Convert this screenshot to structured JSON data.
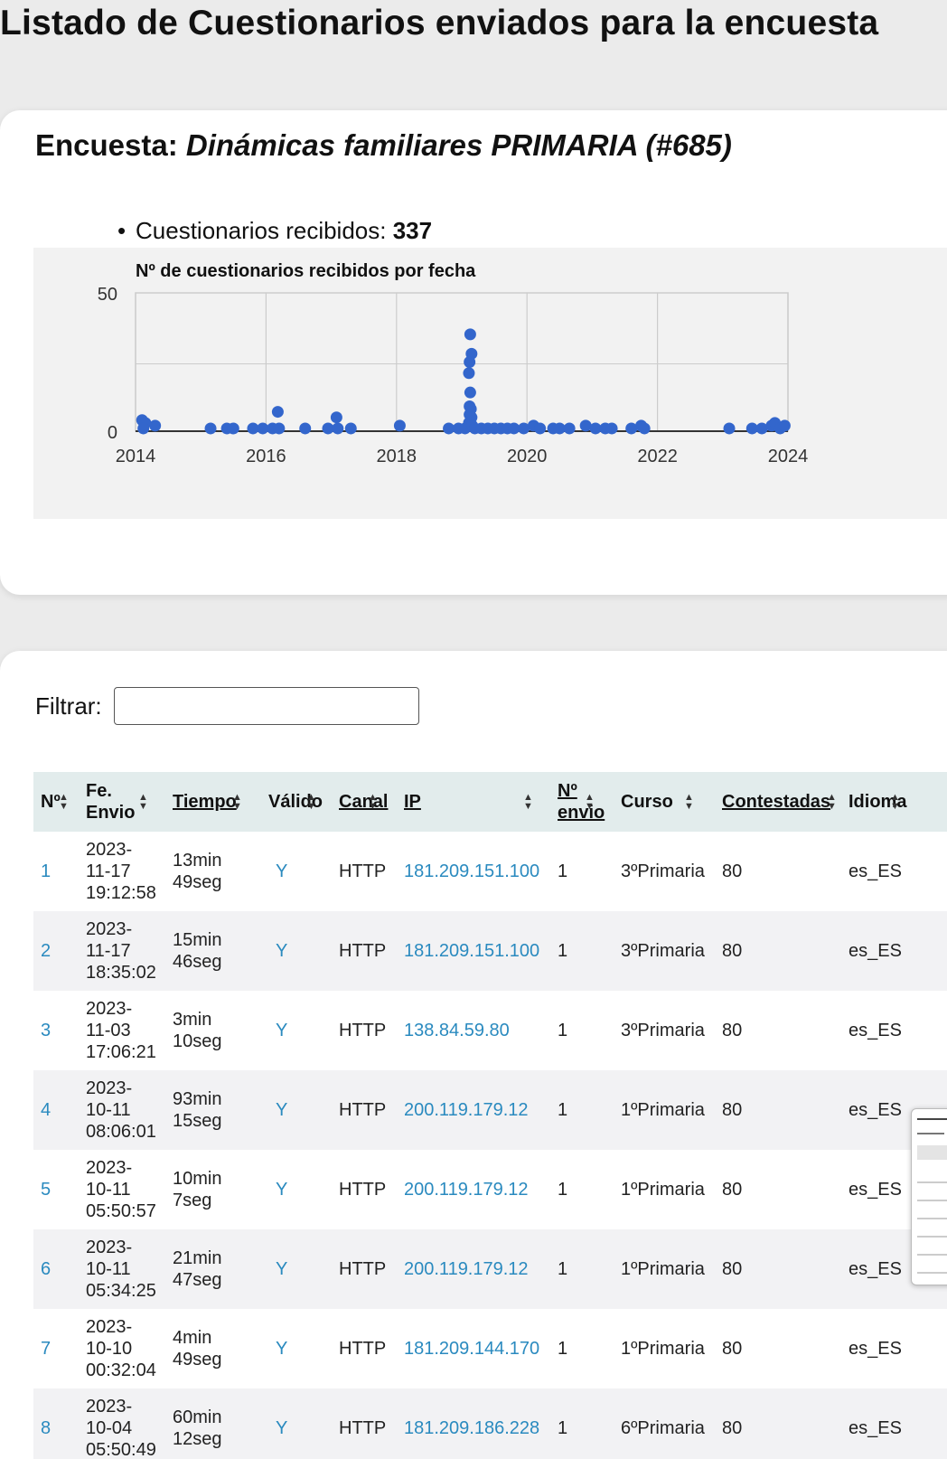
{
  "page": {
    "title": "Listado de Cuestionarios enviados para la encuesta"
  },
  "survey": {
    "label": "Encuesta: ",
    "name": "Dinámicas familiares PRIMARIA (#685)",
    "received_label": "Cuestionarios recibidos: ",
    "received_count": "337"
  },
  "chart_data": {
    "type": "scatter",
    "title": "Nº de cuestionarios recibidos por fecha",
    "xlabel": "",
    "ylabel": "",
    "xlim": [
      2014,
      2024
    ],
    "ylim": [
      0,
      50
    ],
    "x_ticks": [
      "2014",
      "2016",
      "2018",
      "2020",
      "2022",
      "2024"
    ],
    "y_ticks": [
      "0",
      "50"
    ],
    "grid": true,
    "point_color": "#3366cc",
    "points": [
      {
        "x": 2014.1,
        "y": 4
      },
      {
        "x": 2014.15,
        "y": 3
      },
      {
        "x": 2014.12,
        "y": 1
      },
      {
        "x": 2014.3,
        "y": 2
      },
      {
        "x": 2015.15,
        "y": 1
      },
      {
        "x": 2015.4,
        "y": 1
      },
      {
        "x": 2015.5,
        "y": 1
      },
      {
        "x": 2015.8,
        "y": 1
      },
      {
        "x": 2015.95,
        "y": 1
      },
      {
        "x": 2016.1,
        "y": 1
      },
      {
        "x": 2016.18,
        "y": 7
      },
      {
        "x": 2016.2,
        "y": 1
      },
      {
        "x": 2016.6,
        "y": 1
      },
      {
        "x": 2016.95,
        "y": 1
      },
      {
        "x": 2017.08,
        "y": 5
      },
      {
        "x": 2017.1,
        "y": 1
      },
      {
        "x": 2017.3,
        "y": 1
      },
      {
        "x": 2018.05,
        "y": 2
      },
      {
        "x": 2018.8,
        "y": 1
      },
      {
        "x": 2018.95,
        "y": 1
      },
      {
        "x": 2019.05,
        "y": 1
      },
      {
        "x": 2019.13,
        "y": 35
      },
      {
        "x": 2019.15,
        "y": 28
      },
      {
        "x": 2019.12,
        "y": 25
      },
      {
        "x": 2019.11,
        "y": 21
      },
      {
        "x": 2019.13,
        "y": 14
      },
      {
        "x": 2019.12,
        "y": 9
      },
      {
        "x": 2019.14,
        "y": 8
      },
      {
        "x": 2019.12,
        "y": 6
      },
      {
        "x": 2019.15,
        "y": 5
      },
      {
        "x": 2019.11,
        "y": 3
      },
      {
        "x": 2019.16,
        "y": 2
      },
      {
        "x": 2019.2,
        "y": 1
      },
      {
        "x": 2019.3,
        "y": 1
      },
      {
        "x": 2019.4,
        "y": 1
      },
      {
        "x": 2019.5,
        "y": 1
      },
      {
        "x": 2019.6,
        "y": 1
      },
      {
        "x": 2019.7,
        "y": 1
      },
      {
        "x": 2019.8,
        "y": 1
      },
      {
        "x": 2019.95,
        "y": 1
      },
      {
        "x": 2020.1,
        "y": 2
      },
      {
        "x": 2020.2,
        "y": 1
      },
      {
        "x": 2020.4,
        "y": 1
      },
      {
        "x": 2020.5,
        "y": 1
      },
      {
        "x": 2020.65,
        "y": 1
      },
      {
        "x": 2020.9,
        "y": 2
      },
      {
        "x": 2021.05,
        "y": 1
      },
      {
        "x": 2021.2,
        "y": 1
      },
      {
        "x": 2021.3,
        "y": 1
      },
      {
        "x": 2021.6,
        "y": 1
      },
      {
        "x": 2021.75,
        "y": 2
      },
      {
        "x": 2021.8,
        "y": 1
      },
      {
        "x": 2023.1,
        "y": 1
      },
      {
        "x": 2023.45,
        "y": 1
      },
      {
        "x": 2023.6,
        "y": 1
      },
      {
        "x": 2023.75,
        "y": 2
      },
      {
        "x": 2023.8,
        "y": 3
      },
      {
        "x": 2023.88,
        "y": 1
      },
      {
        "x": 2023.95,
        "y": 2
      }
    ]
  },
  "filter": {
    "label": "Filtrar:",
    "value": "",
    "placeholder": ""
  },
  "table": {
    "headers": {
      "num": "Nº",
      "fecha_line1": "Fe.",
      "fecha_line2": "Envio",
      "tiempo": "Tiempo",
      "valido": "Válido",
      "canal": "Canal",
      "ip": "IP",
      "envio_line1": "Nº",
      "envio_line2": "envio",
      "curso": "Curso",
      "contestadas": "Contestadas",
      "idioma": "Idioma"
    },
    "rows": [
      {
        "num": "1",
        "date": "2023-",
        "date2": "11-17",
        "time": "19:12:58",
        "dur1": "13min",
        "dur2": "49seg",
        "valid": "Y",
        "canal": "HTTP",
        "ip": "181.209.151.100",
        "envio": "1",
        "curso": "3ºPrimaria",
        "contestadas": "80",
        "idioma": "es_ES"
      },
      {
        "num": "2",
        "date": "2023-",
        "date2": "11-17",
        "time": "18:35:02",
        "dur1": "15min",
        "dur2": "46seg",
        "valid": "Y",
        "canal": "HTTP",
        "ip": "181.209.151.100",
        "envio": "1",
        "curso": "3ºPrimaria",
        "contestadas": "80",
        "idioma": "es_ES"
      },
      {
        "num": "3",
        "date": "2023-",
        "date2": "11-03",
        "time": "17:06:21",
        "dur1": "3min",
        "dur2": "10seg",
        "valid": "Y",
        "canal": "HTTP",
        "ip": "138.84.59.80",
        "envio": "1",
        "curso": "3ºPrimaria",
        "contestadas": "80",
        "idioma": "es_ES"
      },
      {
        "num": "4",
        "date": "2023-",
        "date2": "10-11",
        "time": "08:06:01",
        "dur1": "93min",
        "dur2": "15seg",
        "valid": "Y",
        "canal": "HTTP",
        "ip": "200.119.179.12",
        "envio": "1",
        "curso": "1ºPrimaria",
        "contestadas": "80",
        "idioma": "es_ES"
      },
      {
        "num": "5",
        "date": "2023-",
        "date2": "10-11",
        "time": "05:50:57",
        "dur1": "10min",
        "dur2": "7seg",
        "valid": "Y",
        "canal": "HTTP",
        "ip": "200.119.179.12",
        "envio": "1",
        "curso": "1ºPrimaria",
        "contestadas": "80",
        "idioma": "es_ES"
      },
      {
        "num": "6",
        "date": "2023-",
        "date2": "10-11",
        "time": "05:34:25",
        "dur1": "21min",
        "dur2": "47seg",
        "valid": "Y",
        "canal": "HTTP",
        "ip": "200.119.179.12",
        "envio": "1",
        "curso": "1ºPrimaria",
        "contestadas": "80",
        "idioma": "es_ES"
      },
      {
        "num": "7",
        "date": "2023-",
        "date2": "10-10",
        "time": "00:32:04",
        "dur1": "4min",
        "dur2": "49seg",
        "valid": "Y",
        "canal": "HTTP",
        "ip": "181.209.144.170",
        "envio": "1",
        "curso": "1ºPrimaria",
        "contestadas": "80",
        "idioma": "es_ES"
      },
      {
        "num": "8",
        "date": "2023-",
        "date2": "10-04",
        "time": "05:50:49",
        "dur1": "60min",
        "dur2": "12seg",
        "valid": "Y",
        "canal": "HTTP",
        "ip": "181.209.186.228",
        "envio": "1",
        "curso": "6ºPrimaria",
        "contestadas": "80",
        "idioma": "es_ES"
      }
    ]
  },
  "colors": {
    "link": "#2a8abf",
    "header_bg": "#e2ecec",
    "stripe": "#f2f2f4",
    "chart_bg": "#f2f2f2"
  }
}
